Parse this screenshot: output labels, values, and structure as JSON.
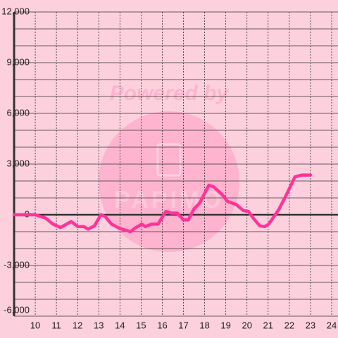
{
  "chart_data": {
    "type": "line",
    "watermark": "Powered by",
    "watermark_brand": "PAPIMO",
    "x": [
      9.0,
      10.0,
      10.5,
      10.83,
      11.2,
      11.7,
      12.0,
      12.3,
      12.5,
      12.8,
      13.1,
      13.3,
      13.6,
      13.97,
      14.5,
      14.7,
      15.03,
      15.2,
      15.5,
      15.8,
      16.17,
      16.43,
      16.7,
      17.0,
      17.23,
      17.5,
      17.77,
      18.2,
      18.43,
      18.83,
      19.07,
      19.5,
      19.83,
      20.07,
      20.3,
      20.6,
      20.83,
      21.03,
      21.5,
      21.83,
      22.27,
      22.6,
      23.0
    ],
    "values": [
      0,
      0,
      -200,
      -550,
      -750,
      -400,
      -700,
      -700,
      -850,
      -650,
      0,
      -100,
      -550,
      -800,
      -1000,
      -800,
      -550,
      -700,
      -550,
      -550,
      200,
      100,
      100,
      -300,
      -300,
      350,
      700,
      1750,
      1650,
      1200,
      800,
      600,
      250,
      200,
      -200,
      -650,
      -700,
      -550,
      300,
      1100,
      2250,
      2350,
      2350
    ],
    "color": "#ff3399",
    "xlim": [
      9,
      24.3
    ],
    "xticks": [
      10,
      11,
      12,
      13,
      14,
      15,
      16,
      17,
      18,
      19,
      20,
      21,
      22,
      23,
      24
    ],
    "ylim": [
      -6000,
      12000
    ],
    "yticks": [
      {
        "value": -6000,
        "label": "-6,000"
      },
      {
        "value": -3000,
        "label": "-3,000"
      },
      0,
      {
        "value": 3000,
        "label": "3,000"
      },
      {
        "value": 6000,
        "label": "6,000"
      },
      {
        "value": 9000,
        "label": "9,000"
      },
      {
        "value": 12000,
        "label": "12,000"
      }
    ],
    "grid": true
  }
}
